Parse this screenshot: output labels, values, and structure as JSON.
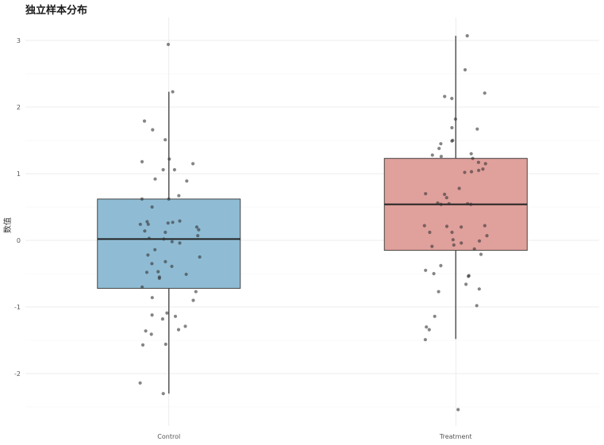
{
  "title": "独立样本分布",
  "chart_data": {
    "type": "box",
    "title": "独立样本分布",
    "xlabel": "",
    "ylabel": "数值",
    "categories": [
      "Control",
      "Treatment"
    ],
    "ylim": [
      -2.9,
      3.3
    ],
    "yticks": [
      -2,
      -1,
      0,
      1,
      2,
      3
    ],
    "grid": true,
    "legend": "none",
    "colors": {
      "Control": "#8fbcd4",
      "Treatment": "#e0a09c"
    },
    "boxes": [
      {
        "name": "Control",
        "q1": -0.72,
        "median": 0.02,
        "q3": 0.62,
        "whisker_low": -2.3,
        "whisker_high": 2.23
      },
      {
        "name": "Treatment",
        "q1": -0.15,
        "median": 0.54,
        "q3": 1.23,
        "whisker_low": -1.48,
        "whisker_high": 3.07
      }
    ],
    "points": [
      {
        "group": "Control",
        "values": [
          2.94,
          2.23,
          1.79,
          1.66,
          1.51,
          1.22,
          1.18,
          1.15,
          1.06,
          1.06,
          0.92,
          0.89,
          0.67,
          0.62,
          0.62,
          0.5,
          0.29,
          0.28,
          0.27,
          0.26,
          0.24,
          0.24,
          0.2,
          0.16,
          0.14,
          0.12,
          0.07,
          0.03,
          0.02,
          -0.02,
          -0.04,
          -0.14,
          -0.22,
          -0.25,
          -0.32,
          -0.35,
          -0.39,
          -0.47,
          -0.48,
          -0.51,
          -0.55,
          -0.57,
          -0.7,
          -0.77,
          -0.86,
          -0.9,
          -1.09,
          -1.12,
          -1.14,
          -1.18,
          -1.29,
          -1.34,
          -1.36,
          -1.41,
          -1.56,
          -1.57,
          -2.14,
          -2.3
        ]
      },
      {
        "group": "Treatment",
        "values": [
          3.07,
          2.56,
          2.21,
          2.16,
          2.13,
          1.82,
          1.69,
          1.67,
          1.5,
          1.49,
          1.45,
          1.38,
          1.3,
          1.28,
          1.26,
          1.23,
          1.17,
          1.15,
          1.07,
          1.05,
          1.03,
          1.02,
          0.78,
          0.7,
          0.69,
          0.64,
          0.56,
          0.55,
          0.55,
          0.54,
          0.54,
          0.22,
          0.22,
          0.21,
          0.2,
          0.12,
          0.12,
          0.07,
          0.01,
          -0.01,
          -0.04,
          -0.07,
          -0.09,
          -0.13,
          -0.21,
          -0.38,
          -0.45,
          -0.5,
          -0.53,
          -0.54,
          -0.66,
          -0.73,
          -0.77,
          -0.98,
          -1.14,
          -1.3,
          -1.34,
          -1.49,
          -2.54
        ]
      }
    ]
  }
}
